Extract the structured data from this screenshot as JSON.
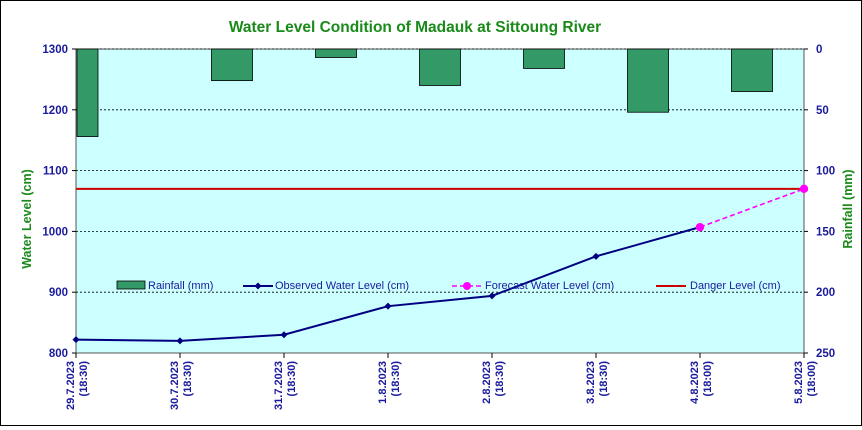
{
  "chart_data": {
    "type": "bar+line",
    "title": "Water Level Condition  of Madauk at Sittoung River",
    "ylabel": "Water Level (cm)",
    "y2label": "Rainfall (mm)",
    "ylim": [
      800,
      1300
    ],
    "yticks": [
      1300,
      1200,
      1100,
      1000,
      900,
      800
    ],
    "y2lim": [
      0,
      250
    ],
    "y2ticks": [
      0,
      50,
      100,
      150,
      200,
      250
    ],
    "y2_inverted": true,
    "grid": "horizontal dotted",
    "legend_placement": "inside-bottom",
    "categories": [
      "29.7.2023 (18:30)",
      "30.7.2023 (18:30)",
      "31.7.2023 (18:30)",
      "1.8.2023 (18:30)",
      "2.8.2023 (18:30)",
      "3.8.2023 (18:30)",
      "4.8.2023 (18:00)",
      "5.8.2023 (18:00)"
    ],
    "category_lines": [
      [
        "29.7.2023",
        "(18:30)"
      ],
      [
        "30.7.2023",
        "(18:30)"
      ],
      [
        "31.7.2023",
        "(18:30)"
      ],
      [
        "1.8.2023",
        "(18:30)"
      ],
      [
        "2.8.2023",
        "(18:30)"
      ],
      [
        "3.8.2023",
        "(18:30)"
      ],
      [
        "4.8.2023",
        "(18:00)"
      ],
      [
        "5.8.2023",
        "(18:00)"
      ]
    ],
    "series": [
      {
        "name": "Rainfall (mm)",
        "type": "bar",
        "axis": "y2",
        "values": [
          72,
          26,
          7,
          30,
          16,
          52,
          35,
          null
        ]
      },
      {
        "name": "Observed Water Level (cm)",
        "type": "line",
        "axis": "y",
        "values": [
          822,
          820,
          830,
          877,
          894,
          959,
          1007,
          null
        ]
      },
      {
        "name": "Forecast Water Level (cm)",
        "type": "line-dashed",
        "axis": "y",
        "values": [
          null,
          null,
          null,
          null,
          null,
          null,
          1007,
          1070
        ]
      },
      {
        "name": "Danger Level (cm)",
        "type": "hline",
        "axis": "y",
        "value": 1070
      }
    ],
    "colors": {
      "plot_bg": "#ccffff",
      "rainfall": "#339966",
      "observed": "#000080",
      "forecast": "#ff00ff",
      "danger": "#cc0000",
      "title": "#1a8a1a",
      "ticks": "#1a1a9c"
    }
  }
}
